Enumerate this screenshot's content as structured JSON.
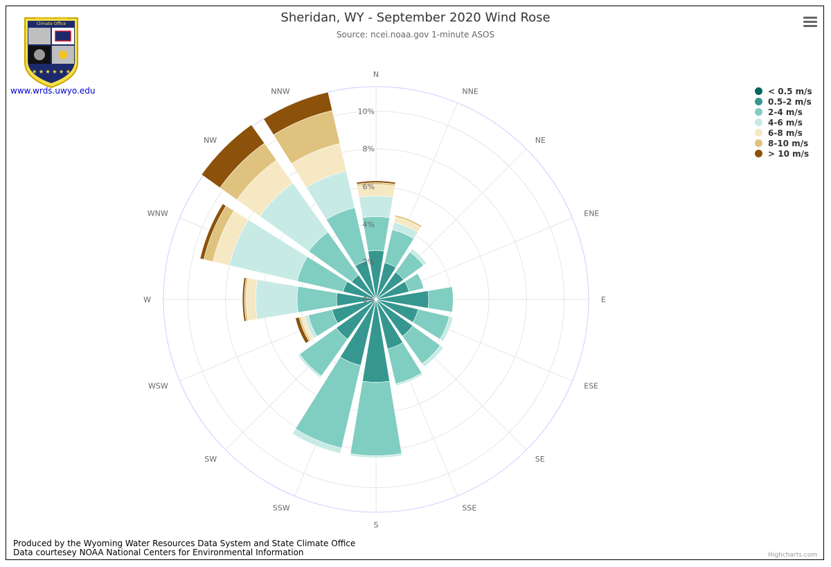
{
  "title": "Sheridan, WY - September 2020 Wind Rose",
  "subtitle": "Source: ncei.noaa.gov 1-minute ASOS",
  "logo": {
    "line1": "Wyoming State",
    "line2": "Climate Office",
    "link": "www.wrds.uwyo.edu"
  },
  "footer": {
    "line1": "Produced by the Wyoming Water Resources Data System and State Climate Office",
    "line2": "Data courtesey NOAA National Centers for Environmental Information"
  },
  "credits": "Highcharts.com",
  "menu_icon": "hamburger-menu-icon",
  "colors": {
    "title": "#333333",
    "grid": "#e6e6e6",
    "outer_circle": "#ccccff",
    "series": [
      "#01665e",
      "#35978f",
      "#80cdc1",
      "#c7eae5",
      "#f6e8c3",
      "#dfc27d",
      "#8c510a"
    ]
  },
  "chart_data": {
    "type": "windrose",
    "title": "Sheridan, WY - September 2020 Wind Rose",
    "subtitle": "Source: ncei.noaa.gov 1-minute ASOS",
    "categories": [
      "N",
      "NNE",
      "NE",
      "ENE",
      "E",
      "ESE",
      "SE",
      "SSE",
      "S",
      "SSW",
      "SW",
      "WSW",
      "W",
      "WNW",
      "NW",
      "NNW"
    ],
    "y_tick_labels": [
      "0%",
      "2%",
      "4%",
      "6%",
      "8%",
      "10%"
    ],
    "ylim": [
      0,
      11.3
    ],
    "stacked": true,
    "legend_position": "top-right",
    "series": [
      {
        "name": "< 0.5 m/s",
        "values": [
          0,
          0,
          0,
          0,
          0,
          0,
          0,
          0,
          0,
          0,
          0,
          0,
          0,
          0,
          0,
          0
        ]
      },
      {
        "name": "0.5-2 m/s",
        "values": [
          2.6,
          2.0,
          1.8,
          1.8,
          2.8,
          2.3,
          2.4,
          2.7,
          4.4,
          3.6,
          2.6,
          2.4,
          2.1,
          1.8,
          1.6,
          2.1
        ]
      },
      {
        "name": "2-4 m/s",
        "values": [
          1.8,
          1.8,
          1.3,
          0.8,
          1.3,
          1.7,
          1.8,
          1.9,
          3.9,
          4.5,
          2.4,
          1.3,
          2.1,
          2.5,
          2.8,
          2.9
        ]
      },
      {
        "name": "4-6 m/s",
        "values": [
          1.1,
          0.4,
          0.2,
          0.0,
          0.0,
          0.2,
          0.2,
          0.1,
          0.1,
          0.3,
          0.1,
          0.2,
          2.2,
          3.7,
          3.2,
          2.0
        ]
      },
      {
        "name": "6-8 m/s",
        "values": [
          0.6,
          0.3,
          0.0,
          0.0,
          0.0,
          0.0,
          0.0,
          0.0,
          0.0,
          0.0,
          0.0,
          0.2,
          0.5,
          0.9,
          1.5,
          1.5
        ]
      },
      {
        "name": "8-10 m/s",
        "values": [
          0.1,
          0.1,
          0.0,
          0.0,
          0.0,
          0.0,
          0.0,
          0.0,
          0.0,
          0.0,
          0.0,
          0.1,
          0.1,
          0.5,
          1.1,
          1.8
        ]
      },
      {
        "name": "> 10 m/s",
        "values": [
          0.1,
          0.0,
          0.0,
          0.0,
          0.0,
          0.0,
          0.0,
          0.0,
          0.0,
          0.0,
          0.0,
          0.2,
          0.1,
          0.2,
          1.2,
          1.0
        ]
      }
    ]
  }
}
